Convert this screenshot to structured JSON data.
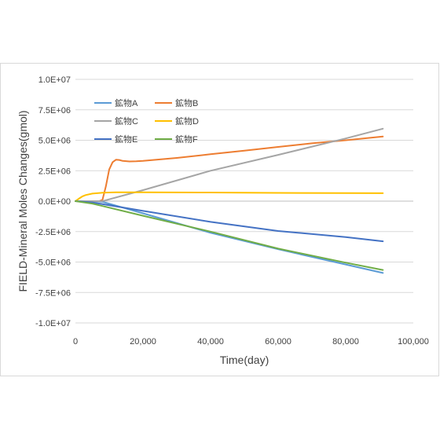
{
  "chart_data": {
    "type": "line",
    "title": "",
    "xlabel": "Time(day)",
    "ylabel": "FIELD-Mineral Moles Changes(gmol)",
    "xlim": [
      0,
      100000
    ],
    "ylim": [
      -10000000,
      10000000
    ],
    "x_ticks": [
      0,
      20000,
      40000,
      60000,
      80000,
      100000
    ],
    "x_tick_labels": [
      "0",
      "20,000",
      "40,000",
      "60,000",
      "80,000",
      "100,000"
    ],
    "y_ticks": [
      10000000,
      7500000,
      5000000,
      2500000,
      0,
      -2500000,
      -5000000,
      -7500000,
      -10000000
    ],
    "y_tick_labels": [
      "1.0E+07",
      "7.5E+06",
      "5.0E+06",
      "2.5E+06",
      "0.0E+00",
      "-2.5E+06",
      "-5.0E+06",
      "-7.5E+06",
      "-1.0E+07"
    ],
    "grid": "horizontal",
    "legend_position": "top-left",
    "series": [
      {
        "name": "鉱物A",
        "color": "#5B9BD5",
        "x": [
          0,
          5000,
          8000,
          20000,
          40000,
          60000,
          80000,
          91000
        ],
        "y": [
          0,
          0,
          -50000,
          -1000000,
          -2600000,
          -3950000,
          -5200000,
          -5900000
        ]
      },
      {
        "name": "鉱物B",
        "color": "#ED7D31",
        "x": [
          0,
          7000,
          8000,
          9000,
          10000,
          11000,
          12000,
          13000,
          14000,
          16000,
          18000,
          20000,
          30000,
          40000,
          50000,
          60000,
          70000,
          80000,
          91000
        ],
        "y": [
          0,
          0,
          100000,
          1200000,
          2600000,
          3200000,
          3400000,
          3380000,
          3300000,
          3260000,
          3270000,
          3300000,
          3550000,
          3850000,
          4150000,
          4450000,
          4750000,
          5000000,
          5300000
        ]
      },
      {
        "name": "鉱物C",
        "color": "#A5A5A5",
        "x": [
          0,
          7000,
          8000,
          20000,
          40000,
          60000,
          80000,
          91000
        ],
        "y": [
          0,
          0,
          0,
          900000,
          2500000,
          3800000,
          5150000,
          5950000
        ]
      },
      {
        "name": "鉱物D",
        "color": "#FFC000",
        "x": [
          0,
          1000,
          2000,
          3000,
          5000,
          8000,
          12000,
          20000,
          40000,
          60000,
          80000,
          91000
        ],
        "y": [
          0,
          200000,
          380000,
          500000,
          620000,
          690000,
          720000,
          730000,
          710000,
          680000,
          660000,
          650000
        ]
      },
      {
        "name": "鉱物E",
        "color": "#4472C4",
        "x": [
          0,
          5000,
          20000,
          40000,
          60000,
          80000,
          91000
        ],
        "y": [
          0,
          -100000,
          -800000,
          -1700000,
          -2450000,
          -2950000,
          -3300000
        ]
      },
      {
        "name": "鉱物F",
        "color": "#70AD47",
        "x": [
          0,
          5000,
          20000,
          40000,
          60000,
          80000,
          91000
        ],
        "y": [
          0,
          -200000,
          -1200000,
          -2500000,
          -3900000,
          -5050000,
          -5650000
        ]
      }
    ]
  }
}
